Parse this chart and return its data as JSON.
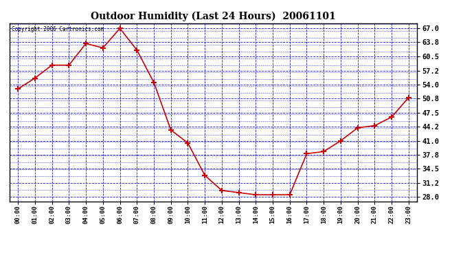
{
  "title": "Outdoor Humidity (Last 24 Hours)  20061101",
  "copyright_text": "Copyright 2006 Cartronics.com",
  "x_labels": [
    "00:00",
    "01:00",
    "02:00",
    "03:00",
    "04:00",
    "05:00",
    "06:00",
    "07:00",
    "08:00",
    "09:00",
    "10:00",
    "11:00",
    "12:00",
    "13:00",
    "14:00",
    "15:00",
    "16:00",
    "17:00",
    "18:00",
    "19:00",
    "20:00",
    "21:00",
    "22:00",
    "23:00"
  ],
  "y_values": [
    53.0,
    55.5,
    58.5,
    58.5,
    63.5,
    62.5,
    67.0,
    62.0,
    54.5,
    43.5,
    40.5,
    33.0,
    29.5,
    29.0,
    28.5,
    28.5,
    28.5,
    38.0,
    38.5,
    41.0,
    44.0,
    44.5,
    46.5,
    51.0
  ],
  "line_color": "#cc0000",
  "marker_color": "#cc0000",
  "fig_bg_color": "#ffffff",
  "plot_bg_color": "#ffffff",
  "grid_color": "#0000cc",
  "border_color": "#000000",
  "title_color": "#000000",
  "y_tick_labels": [
    "67.0",
    "63.8",
    "60.5",
    "57.2",
    "54.0",
    "50.8",
    "47.5",
    "44.2",
    "41.0",
    "37.8",
    "34.5",
    "31.2",
    "28.0"
  ],
  "y_tick_values": [
    67.0,
    63.8,
    60.5,
    57.2,
    54.0,
    50.8,
    47.5,
    44.2,
    41.0,
    37.8,
    34.5,
    31.2,
    28.0
  ],
  "ylim": [
    27.0,
    68.2
  ],
  "figsize": [
    6.9,
    3.75
  ],
  "dpi": 100
}
